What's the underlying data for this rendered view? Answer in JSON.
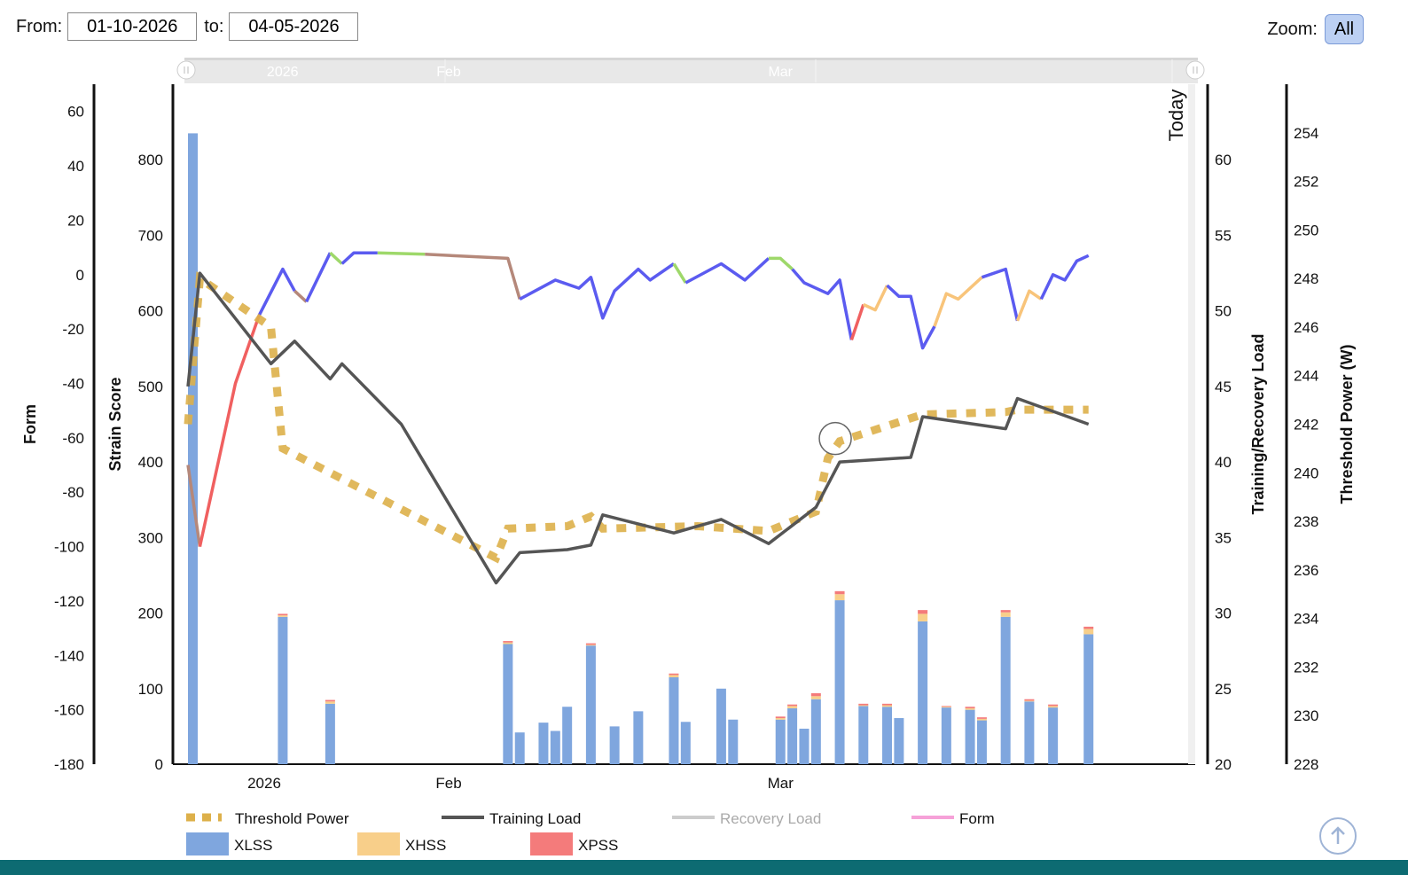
{
  "filters": {
    "from_label": "From:",
    "from_value": "01-10-2026",
    "to_label": "to:",
    "to_value": "04-05-2026"
  },
  "zoom": {
    "label": "Zoom:",
    "button": "All"
  },
  "navigator": {
    "labels": [
      "2026",
      "Feb",
      "Mar"
    ]
  },
  "today_label": "Today",
  "colors": {
    "xlss": "#7fa6de",
    "xhss": "#f8cf8a",
    "xpss": "#f47b7b",
    "threshold": "#ddb04a",
    "training": "#555555",
    "recovery": "#cccccc",
    "form": "#f6a1d8",
    "form_pos": "#5b5bf0",
    "form_transition": "#9ed86a",
    "form_neutral": "#b5887a",
    "form_neg": "#f06060",
    "form_light": "#f8c47a"
  },
  "chart_data": {
    "type": "bar+line",
    "x_start": "2026-01-10",
    "x_end": "2026-04-05",
    "x_ticks": [
      {
        "label": "2026",
        "date": "2026-01-01"
      },
      {
        "label": "Feb",
        "date": "2026-02-01"
      },
      {
        "label": "Mar",
        "date": "2026-03-01"
      }
    ],
    "axes": [
      {
        "id": "form",
        "title": "Form",
        "min": -180,
        "max": 70,
        "ticks": [
          -180,
          -160,
          -140,
          -120,
          -100,
          -80,
          -60,
          -40,
          -20,
          0,
          20,
          40,
          60
        ]
      },
      {
        "id": "strain",
        "title": "Strain Score",
        "min": 0,
        "max": 900,
        "ticks": [
          0,
          100,
          200,
          300,
          400,
          500,
          600,
          700,
          800
        ]
      },
      {
        "id": "load",
        "title": "Training/Recovery Load",
        "min": 20,
        "max": 65,
        "ticks": [
          20,
          25,
          30,
          35,
          40,
          45,
          50,
          55,
          60
        ]
      },
      {
        "id": "power",
        "title": "Threshold Power (W)",
        "min": 228,
        "max": 256,
        "ticks": [
          228,
          230,
          232,
          234,
          236,
          238,
          240,
          242,
          244,
          246,
          248,
          250,
          252,
          254
        ]
      }
    ],
    "strain_bars": [
      {
        "date": "2026-01-10",
        "xlss": 835,
        "xhss": 0,
        "xpss": 0
      },
      {
        "date": "2026-01-18",
        "xlss": 195,
        "xhss": 2,
        "xpss": 2
      },
      {
        "date": "2026-01-22",
        "xlss": 80,
        "xhss": 3,
        "xpss": 2
      },
      {
        "date": "2026-02-06",
        "xlss": 159,
        "xhss": 2,
        "xpss": 2
      },
      {
        "date": "2026-02-07",
        "xlss": 42,
        "xhss": 0,
        "xpss": 0
      },
      {
        "date": "2026-02-09",
        "xlss": 55,
        "xhss": 0,
        "xpss": 0
      },
      {
        "date": "2026-02-10",
        "xlss": 44,
        "xhss": 0,
        "xpss": 0
      },
      {
        "date": "2026-02-11",
        "xlss": 76,
        "xhss": 0,
        "xpss": 0
      },
      {
        "date": "2026-02-13",
        "xlss": 157,
        "xhss": 1,
        "xpss": 2
      },
      {
        "date": "2026-02-15",
        "xlss": 50,
        "xhss": 0,
        "xpss": 0
      },
      {
        "date": "2026-02-17",
        "xlss": 70,
        "xhss": 0,
        "xpss": 0
      },
      {
        "date": "2026-02-20",
        "xlss": 115,
        "xhss": 3,
        "xpss": 2
      },
      {
        "date": "2026-02-21",
        "xlss": 56,
        "xhss": 0,
        "xpss": 0
      },
      {
        "date": "2026-02-24",
        "xlss": 100,
        "xhss": 0,
        "xpss": 0
      },
      {
        "date": "2026-02-25",
        "xlss": 59,
        "xhss": 0,
        "xpss": 0
      },
      {
        "date": "2026-03-01",
        "xlss": 59,
        "xhss": 2,
        "xpss": 2
      },
      {
        "date": "2026-03-02",
        "xlss": 74,
        "xhss": 3,
        "xpss": 2
      },
      {
        "date": "2026-03-03",
        "xlss": 47,
        "xhss": 0,
        "xpss": 0
      },
      {
        "date": "2026-03-04",
        "xlss": 86,
        "xhss": 4,
        "xpss": 4
      },
      {
        "date": "2026-03-06",
        "xlss": 217,
        "xhss": 8,
        "xpss": 4
      },
      {
        "date": "2026-03-08",
        "xlss": 77,
        "xhss": 1,
        "xpss": 2
      },
      {
        "date": "2026-03-10",
        "xlss": 76,
        "xhss": 2,
        "xpss": 2
      },
      {
        "date": "2026-03-11",
        "xlss": 61,
        "xhss": 0,
        "xpss": 0
      },
      {
        "date": "2026-03-13",
        "xlss": 189,
        "xhss": 10,
        "xpss": 5
      },
      {
        "date": "2026-03-15",
        "xlss": 75,
        "xhss": 1,
        "xpss": 1
      },
      {
        "date": "2026-03-17",
        "xlss": 72,
        "xhss": 2,
        "xpss": 2
      },
      {
        "date": "2026-03-18",
        "xlss": 58,
        "xhss": 2,
        "xpss": 2
      },
      {
        "date": "2026-03-20",
        "xlss": 195,
        "xhss": 6,
        "xpss": 3
      },
      {
        "date": "2026-03-22",
        "xlss": 83,
        "xhss": 1,
        "xpss": 2
      },
      {
        "date": "2026-03-24",
        "xlss": 75,
        "xhss": 2,
        "xpss": 2
      },
      {
        "date": "2026-03-27",
        "xlss": 172,
        "xhss": 7,
        "xpss": 3
      }
    ],
    "threshold_power": [
      {
        "date": "2026-01-10",
        "y": 242
      },
      {
        "date": "2026-01-11",
        "y": 248
      },
      {
        "date": "2026-01-17",
        "y": 246
      },
      {
        "date": "2026-01-18",
        "y": 241
      },
      {
        "date": "2026-01-22",
        "y": 240
      },
      {
        "date": "2026-01-26",
        "y": 239
      },
      {
        "date": "2026-02-01",
        "y": 237.5
      },
      {
        "date": "2026-02-05",
        "y": 236.5
      },
      {
        "date": "2026-02-06",
        "y": 237.7
      },
      {
        "date": "2026-02-11",
        "y": 237.8
      },
      {
        "date": "2026-02-13",
        "y": 238.2
      },
      {
        "date": "2026-02-14",
        "y": 237.7
      },
      {
        "date": "2026-02-22",
        "y": 237.8
      },
      {
        "date": "2026-02-28",
        "y": 237.6
      },
      {
        "date": "2026-03-04",
        "y": 238.4
      },
      {
        "date": "2026-03-05",
        "y": 240.6
      },
      {
        "date": "2026-03-06",
        "y": 241.3
      },
      {
        "date": "2026-03-13",
        "y": 242.4
      },
      {
        "date": "2026-03-20",
        "y": 242.5
      },
      {
        "date": "2026-03-21",
        "y": 242.6
      },
      {
        "date": "2026-03-27",
        "y": 242.6
      }
    ],
    "training_load": [
      {
        "date": "2026-01-10",
        "y": 45
      },
      {
        "date": "2026-01-11",
        "y": 52.5
      },
      {
        "date": "2026-01-17",
        "y": 46.5
      },
      {
        "date": "2026-01-19",
        "y": 48
      },
      {
        "date": "2026-01-22",
        "y": 45.5
      },
      {
        "date": "2026-01-23",
        "y": 46.5
      },
      {
        "date": "2026-01-28",
        "y": 42.5
      },
      {
        "date": "2026-02-05",
        "y": 32
      },
      {
        "date": "2026-02-07",
        "y": 34
      },
      {
        "date": "2026-02-11",
        "y": 34.2
      },
      {
        "date": "2026-02-13",
        "y": 34.5
      },
      {
        "date": "2026-02-14",
        "y": 36.5
      },
      {
        "date": "2026-02-20",
        "y": 35.3
      },
      {
        "date": "2026-02-24",
        "y": 36.2
      },
      {
        "date": "2026-02-28",
        "y": 34.6
      },
      {
        "date": "2026-03-04",
        "y": 37
      },
      {
        "date": "2026-03-06",
        "y": 40
      },
      {
        "date": "2026-03-12",
        "y": 40.3
      },
      {
        "date": "2026-03-13",
        "y": 43
      },
      {
        "date": "2026-03-20",
        "y": 42.2
      },
      {
        "date": "2026-03-21",
        "y": 44.2
      },
      {
        "date": "2026-03-27",
        "y": 42.5
      }
    ],
    "form_segments": [
      {
        "tone": "form_neutral",
        "points": [
          {
            "date": "2026-01-10",
            "y": -70
          },
          {
            "date": "2026-01-11",
            "y": -100
          }
        ]
      },
      {
        "tone": "form_neg",
        "points": [
          {
            "date": "2026-01-11",
            "y": -100
          },
          {
            "date": "2026-01-14",
            "y": -40
          },
          {
            "date": "2026-01-16",
            "y": -15
          }
        ]
      },
      {
        "tone": "form_pos",
        "points": [
          {
            "date": "2026-01-16",
            "y": -15
          },
          {
            "date": "2026-01-18",
            "y": 2
          },
          {
            "date": "2026-01-19",
            "y": -6
          }
        ]
      },
      {
        "tone": "form_neutral",
        "points": [
          {
            "date": "2026-01-19",
            "y": -6
          },
          {
            "date": "2026-01-20",
            "y": -10
          }
        ]
      },
      {
        "tone": "form_pos",
        "points": [
          {
            "date": "2026-01-20",
            "y": -10
          },
          {
            "date": "2026-01-22",
            "y": 8
          }
        ]
      },
      {
        "tone": "form_transition",
        "points": [
          {
            "date": "2026-01-22",
            "y": 8
          },
          {
            "date": "2026-01-23",
            "y": 4
          }
        ]
      },
      {
        "tone": "form_pos",
        "points": [
          {
            "date": "2026-01-23",
            "y": 4
          },
          {
            "date": "2026-01-24",
            "y": 8
          },
          {
            "date": "2026-01-26",
            "y": 8
          }
        ]
      },
      {
        "tone": "form_transition",
        "points": [
          {
            "date": "2026-01-26",
            "y": 8
          },
          {
            "date": "2026-01-30",
            "y": 7.5
          }
        ]
      },
      {
        "tone": "form_neutral",
        "points": [
          {
            "date": "2026-01-30",
            "y": 7.5
          },
          {
            "date": "2026-02-06",
            "y": 6
          },
          {
            "date": "2026-02-07",
            "y": -9
          }
        ]
      },
      {
        "tone": "form_pos",
        "points": [
          {
            "date": "2026-02-07",
            "y": -9
          },
          {
            "date": "2026-02-10",
            "y": -2
          },
          {
            "date": "2026-02-12",
            "y": -5
          },
          {
            "date": "2026-02-13",
            "y": -1
          },
          {
            "date": "2026-02-14",
            "y": -16
          },
          {
            "date": "2026-02-15",
            "y": -6
          },
          {
            "date": "2026-02-17",
            "y": 2
          },
          {
            "date": "2026-02-18",
            "y": -2
          },
          {
            "date": "2026-02-20",
            "y": 4
          }
        ]
      },
      {
        "tone": "form_transition",
        "points": [
          {
            "date": "2026-02-20",
            "y": 4
          },
          {
            "date": "2026-02-21",
            "y": -3
          }
        ]
      },
      {
        "tone": "form_pos",
        "points": [
          {
            "date": "2026-02-21",
            "y": -3
          },
          {
            "date": "2026-02-24",
            "y": 4
          },
          {
            "date": "2026-02-26",
            "y": -2
          },
          {
            "date": "2026-02-28",
            "y": 6
          }
        ]
      },
      {
        "tone": "form_transition",
        "points": [
          {
            "date": "2026-02-28",
            "y": 6
          },
          {
            "date": "2026-03-01",
            "y": 6
          },
          {
            "date": "2026-03-02",
            "y": 2
          }
        ]
      },
      {
        "tone": "form_pos",
        "points": [
          {
            "date": "2026-03-02",
            "y": 2
          },
          {
            "date": "2026-03-03",
            "y": -3
          },
          {
            "date": "2026-03-05",
            "y": -7
          },
          {
            "date": "2026-03-06",
            "y": -2
          },
          {
            "date": "2026-03-07",
            "y": -24
          }
        ]
      },
      {
        "tone": "form_neg",
        "points": [
          {
            "date": "2026-03-07",
            "y": -24
          },
          {
            "date": "2026-03-08",
            "y": -11
          }
        ]
      },
      {
        "tone": "form_light",
        "points": [
          {
            "date": "2026-03-08",
            "y": -11
          },
          {
            "date": "2026-03-09",
            "y": -13
          },
          {
            "date": "2026-03-10",
            "y": -4
          }
        ]
      },
      {
        "tone": "form_pos",
        "points": [
          {
            "date": "2026-03-10",
            "y": -4
          },
          {
            "date": "2026-03-11",
            "y": -8
          },
          {
            "date": "2026-03-12",
            "y": -8
          },
          {
            "date": "2026-03-13",
            "y": -27
          },
          {
            "date": "2026-03-14",
            "y": -19
          }
        ]
      },
      {
        "tone": "form_light",
        "points": [
          {
            "date": "2026-03-14",
            "y": -19
          },
          {
            "date": "2026-03-15",
            "y": -7
          },
          {
            "date": "2026-03-16",
            "y": -9
          },
          {
            "date": "2026-03-18",
            "y": -1
          }
        ]
      },
      {
        "tone": "form_pos",
        "points": [
          {
            "date": "2026-03-18",
            "y": -1
          },
          {
            "date": "2026-03-20",
            "y": 2
          },
          {
            "date": "2026-03-21",
            "y": -17
          }
        ]
      },
      {
        "tone": "form_light",
        "points": [
          {
            "date": "2026-03-21",
            "y": -17
          },
          {
            "date": "2026-03-22",
            "y": -6
          },
          {
            "date": "2026-03-23",
            "y": -9
          }
        ]
      },
      {
        "tone": "form_pos",
        "points": [
          {
            "date": "2026-03-23",
            "y": -9
          },
          {
            "date": "2026-03-24",
            "y": 0
          },
          {
            "date": "2026-03-25",
            "y": -2
          },
          {
            "date": "2026-03-26",
            "y": 5
          },
          {
            "date": "2026-03-27",
            "y": 7
          }
        ]
      }
    ],
    "legend": [
      {
        "name": "Threshold Power",
        "style": "dotted",
        "key": "threshold"
      },
      {
        "name": "Training Load",
        "style": "line",
        "key": "training"
      },
      {
        "name": "Recovery Load",
        "style": "line",
        "key": "recovery",
        "hidden": true
      },
      {
        "name": "Form",
        "style": "line",
        "key": "form"
      },
      {
        "name": "XLSS",
        "style": "box",
        "key": "xlss"
      },
      {
        "name": "XHSS",
        "style": "box",
        "key": "xhss"
      },
      {
        "name": "XPSS",
        "style": "box",
        "key": "xpss"
      }
    ]
  }
}
